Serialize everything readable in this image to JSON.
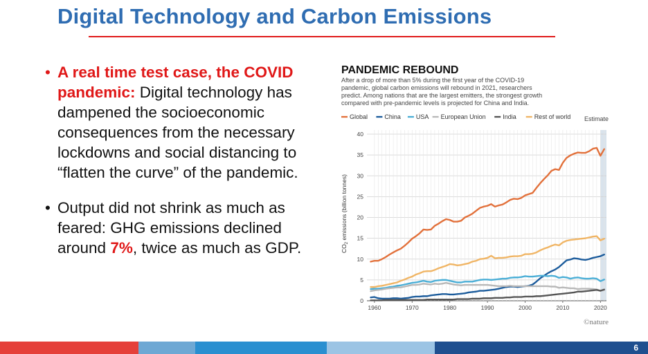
{
  "slide": {
    "title": "Digital Technology and Carbon Emissions",
    "page_number": "6",
    "bullets": [
      {
        "highlight": "A real time test case, the COVID pandemic:",
        "text": " Digital technology has dampened the socioeconomic consequences from the necessary lockdowns and social distancing to “flatten the curve” of the pandemic."
      },
      {
        "text_before": "Output did not shrink as much as feared: GHG emissions declined around ",
        "highlight": "7%",
        "text_after": ", twice as much as GDP."
      }
    ]
  },
  "chart_data": {
    "type": "line",
    "title": "PANDEMIC REBOUND",
    "subtitle_lines": [
      "After a drop of more than 5% during the first year of the COVID-19",
      "pandemic, global carbon emissions will rebound in 2021, researchers",
      "predict. Among nations that are the largest emitters, the strongest growth",
      "compared with pre-pandemic levels is projected for China and India."
    ],
    "ylabel": "CO2 emissions (billion tonnes)",
    "ylabel_main": "CO",
    "ylabel_sub": "2",
    "ylabel_rest": " emissions (billion tonnes)",
    "xlim": [
      1958,
      2021.6
    ],
    "ylim": [
      0,
      40
    ],
    "x_ticks": [
      1960,
      1970,
      1980,
      1990,
      2000,
      2010,
      2020
    ],
    "y_ticks": [
      0,
      5,
      10,
      15,
      20,
      25,
      30,
      35,
      40
    ],
    "grid": true,
    "legend_position": "top",
    "estimate_label": "Estimate",
    "estimate_range": [
      2020,
      2021.6
    ],
    "credit": "©nature",
    "x": [
      1959,
      1960,
      1961,
      1962,
      1963,
      1964,
      1965,
      1966,
      1967,
      1968,
      1969,
      1970,
      1971,
      1972,
      1973,
      1974,
      1975,
      1976,
      1977,
      1978,
      1979,
      1980,
      1981,
      1982,
      1983,
      1984,
      1985,
      1986,
      1987,
      1988,
      1989,
      1990,
      1991,
      1992,
      1993,
      1994,
      1995,
      1996,
      1997,
      1998,
      1999,
      2000,
      2001,
      2002,
      2003,
      2004,
      2005,
      2006,
      2007,
      2008,
      2009,
      2010,
      2011,
      2012,
      2013,
      2014,
      2015,
      2016,
      2017,
      2018,
      2019,
      2020,
      2021
    ],
    "series": [
      {
        "name": "Global",
        "color": "#e2703a",
        "values": [
          9.4,
          9.6,
          9.6,
          10,
          10.5,
          11.1,
          11.6,
          12.1,
          12.5,
          13.2,
          14,
          14.9,
          15.5,
          16.2,
          17.1,
          17,
          17.1,
          18,
          18.5,
          19.1,
          19.6,
          19.4,
          19,
          19,
          19.2,
          20,
          20.4,
          20.9,
          21.6,
          22.3,
          22.6,
          22.8,
          23.2,
          22.6,
          22.9,
          23.1,
          23.6,
          24.2,
          24.5,
          24.4,
          24.7,
          25.3,
          25.6,
          25.9,
          27.1,
          28.2,
          29.2,
          30.1,
          31.2,
          31.6,
          31.4,
          33.1,
          34.3,
          34.9,
          35.3,
          35.6,
          35.5,
          35.5,
          35.9,
          36.5,
          36.7,
          34.8,
          36.4
        ]
      },
      {
        "name": "China",
        "color": "#1c5c9c",
        "values": [
          0.8,
          0.9,
          0.6,
          0.5,
          0.5,
          0.5,
          0.6,
          0.6,
          0.5,
          0.6,
          0.7,
          0.9,
          1,
          1,
          1.1,
          1.1,
          1.3,
          1.4,
          1.5,
          1.6,
          1.6,
          1.5,
          1.5,
          1.6,
          1.7,
          1.8,
          2,
          2.1,
          2.2,
          2.4,
          2.4,
          2.5,
          2.6,
          2.7,
          2.9,
          3.1,
          3.3,
          3.4,
          3.4,
          3.3,
          3.4,
          3.5,
          3.6,
          3.9,
          4.6,
          5.4,
          6,
          6.6,
          7.1,
          7.5,
          8.1,
          8.9,
          9.7,
          9.9,
          10.2,
          10.1,
          9.9,
          9.8,
          10,
          10.3,
          10.5,
          10.7,
          11.1
        ]
      },
      {
        "name": "USA",
        "color": "#4aaed6",
        "values": [
          2.8,
          2.9,
          2.9,
          3,
          3.1,
          3.3,
          3.4,
          3.6,
          3.7,
          3.9,
          4.1,
          4.3,
          4.4,
          4.6,
          4.8,
          4.6,
          4.5,
          4.8,
          4.9,
          5,
          5,
          4.8,
          4.6,
          4.4,
          4.4,
          4.6,
          4.6,
          4.6,
          4.8,
          5,
          5.1,
          5.1,
          5,
          5.1,
          5.2,
          5.3,
          5.3,
          5.5,
          5.6,
          5.6,
          5.7,
          5.9,
          5.8,
          5.8,
          5.9,
          6,
          6,
          5.9,
          6,
          5.9,
          5.5,
          5.7,
          5.6,
          5.3,
          5.5,
          5.6,
          5.4,
          5.3,
          5.3,
          5.4,
          5.3,
          4.7,
          5.1
        ]
      },
      {
        "name": "European Union",
        "color": "#b8b8b8",
        "values": [
          2.3,
          2.5,
          2.6,
          2.7,
          2.9,
          3,
          3.1,
          3.2,
          3.2,
          3.4,
          3.6,
          3.8,
          3.8,
          3.9,
          4.1,
          4,
          3.9,
          4.1,
          4,
          4.1,
          4.3,
          4.1,
          3.9,
          3.8,
          3.7,
          3.8,
          3.8,
          3.8,
          3.8,
          3.8,
          3.8,
          3.8,
          3.7,
          3.6,
          3.5,
          3.5,
          3.5,
          3.6,
          3.5,
          3.5,
          3.5,
          3.5,
          3.5,
          3.5,
          3.5,
          3.5,
          3.5,
          3.5,
          3.4,
          3.4,
          3.1,
          3.2,
          3.1,
          3,
          3,
          2.8,
          2.9,
          2.9,
          2.9,
          2.8,
          2.7,
          2.4,
          2.6
        ]
      },
      {
        "name": "India",
        "color": "#555555",
        "values": [
          0.1,
          0.1,
          0.1,
          0.1,
          0.2,
          0.2,
          0.2,
          0.2,
          0.2,
          0.2,
          0.2,
          0.2,
          0.2,
          0.2,
          0.2,
          0.3,
          0.3,
          0.3,
          0.3,
          0.3,
          0.3,
          0.3,
          0.3,
          0.4,
          0.4,
          0.4,
          0.4,
          0.5,
          0.5,
          0.5,
          0.6,
          0.6,
          0.6,
          0.7,
          0.7,
          0.7,
          0.8,
          0.8,
          0.9,
          0.9,
          0.9,
          1,
          1,
          1,
          1.1,
          1.1,
          1.2,
          1.3,
          1.4,
          1.5,
          1.6,
          1.7,
          1.8,
          1.9,
          2,
          2.2,
          2.2,
          2.3,
          2.4,
          2.5,
          2.6,
          2.4,
          2.7
        ]
      },
      {
        "name": "Rest of world",
        "color": "#f0b565",
        "values": [
          3.3,
          3.3,
          3.5,
          3.6,
          3.8,
          4,
          4.2,
          4.4,
          4.8,
          5.1,
          5.5,
          5.8,
          6.3,
          6.6,
          7,
          7.1,
          7.1,
          7.4,
          7.8,
          8.1,
          8.4,
          8.8,
          8.7,
          8.5,
          8.6,
          8.8,
          9,
          9.4,
          9.6,
          10,
          10.1,
          10.3,
          10.8,
          10.2,
          10.3,
          10.3,
          10.4,
          10.6,
          10.7,
          10.7,
          10.8,
          11.2,
          11.2,
          11.3,
          11.6,
          12.1,
          12.5,
          12.8,
          13.2,
          13.5,
          13.3,
          14,
          14.4,
          14.6,
          14.7,
          14.8,
          14.9,
          15,
          15.2,
          15.4,
          15.5,
          14.5,
          14.9
        ]
      }
    ]
  }
}
